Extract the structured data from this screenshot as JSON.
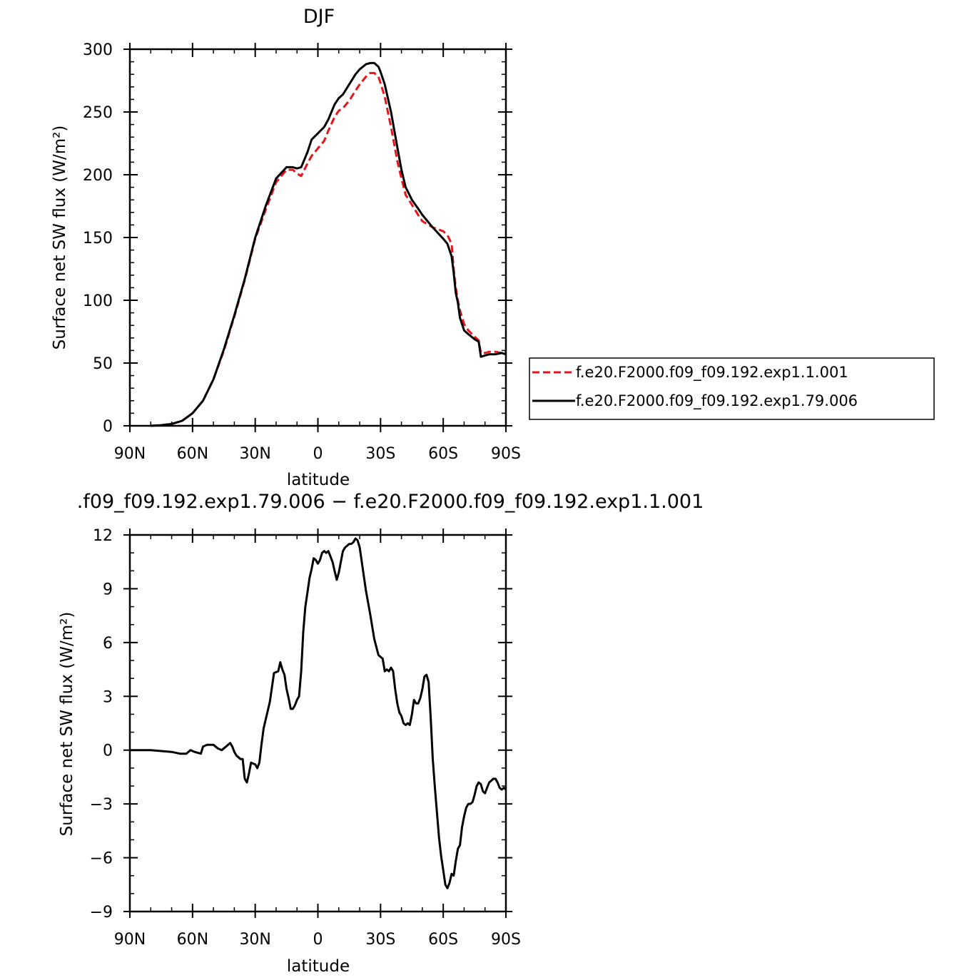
{
  "chart_data": [
    {
      "type": "line",
      "title": "DJF",
      "xlabel": "latitude",
      "ylabel": "Surface net SW flux (W/m²)",
      "xlim": [
        90,
        -90
      ],
      "ylim": [
        0,
        300
      ],
      "x_ticks": [
        {
          "value": 90,
          "label": "90N"
        },
        {
          "value": 60,
          "label": "60N"
        },
        {
          "value": 30,
          "label": "30N"
        },
        {
          "value": 0,
          "label": "0"
        },
        {
          "value": -30,
          "label": "30S"
        },
        {
          "value": -60,
          "label": "60S"
        },
        {
          "value": -90,
          "label": "90S"
        }
      ],
      "y_ticks": [
        {
          "value": 0,
          "label": "0"
        },
        {
          "value": 50,
          "label": "50"
        },
        {
          "value": 100,
          "label": "100"
        },
        {
          "value": 150,
          "label": "150"
        },
        {
          "value": 200,
          "label": "200"
        },
        {
          "value": 250,
          "label": "250"
        },
        {
          "value": 300,
          "label": "300"
        }
      ],
      "legend_position": "right",
      "series": [
        {
          "name": "f.e20.F2000.f09_f09.192.exp1.1.001",
          "color": "#e8141b",
          "dash": "dashed",
          "x": [
            80,
            75,
            70,
            65,
            60,
            55,
            50,
            45,
            40,
            35,
            30,
            25,
            20,
            15,
            12,
            10,
            8,
            5,
            3,
            0,
            -3,
            -5,
            -8,
            -10,
            -12,
            -15,
            -18,
            -20,
            -23,
            -25,
            -27,
            -29,
            -30,
            -32,
            -35,
            -38,
            -40,
            -42,
            -45,
            -48,
            -50,
            -55,
            -60,
            -62,
            -64,
            -65,
            -66,
            -67,
            -68,
            -70,
            -72,
            -75,
            -77,
            -78,
            -80,
            -82,
            -85,
            -88,
            -90
          ],
          "y": [
            0,
            0.5,
            1.5,
            4,
            10,
            20,
            37,
            60,
            87,
            116,
            149,
            172,
            194,
            204,
            204,
            201,
            199,
            209,
            215,
            221,
            227,
            235,
            246,
            251,
            253,
            259,
            267,
            272,
            278,
            281,
            281,
            278,
            273,
            262,
            238,
            211,
            197,
            184,
            176,
            168,
            163,
            158,
            155,
            152,
            145,
            125,
            110,
            100,
            92,
            81,
            76,
            71,
            68,
            58,
            58,
            59,
            59,
            58,
            59
          ]
        },
        {
          "name": "f.e20.F2000.f09_f09.192.exp1.79.006",
          "color": "#000000",
          "dash": "solid",
          "x": [
            80,
            75,
            70,
            65,
            60,
            55,
            50,
            45,
            40,
            35,
            30,
            25,
            20,
            15,
            12,
            10,
            8,
            5,
            3,
            0,
            -3,
            -5,
            -8,
            -10,
            -12,
            -15,
            -18,
            -20,
            -23,
            -25,
            -27,
            -29,
            -30,
            -32,
            -35,
            -38,
            -40,
            -42,
            -45,
            -48,
            -50,
            -55,
            -60,
            -62,
            -64,
            -65,
            -66,
            -67,
            -68,
            -70,
            -72,
            -75,
            -77,
            -78,
            -80,
            -82,
            -85,
            -88,
            -90
          ],
          "y": [
            0,
            0.5,
            1.5,
            4,
            10,
            20,
            37,
            61,
            88,
            117,
            150,
            175,
            197,
            206,
            206,
            205,
            206,
            218,
            228,
            233,
            238,
            244,
            256,
            261,
            264,
            272,
            280,
            284,
            288,
            289,
            289,
            286,
            282,
            272,
            250,
            222,
            204,
            190,
            180,
            173,
            168,
            158,
            149,
            145,
            135,
            122,
            106,
            98,
            86,
            76,
            73,
            69,
            67,
            55,
            56,
            57,
            57,
            58,
            57
          ]
        }
      ]
    },
    {
      "type": "line",
      "title": ".f09_f09.192.exp1.79.006 − f.e20.F2000.f09_f09.192.exp1.1.001",
      "xlabel": "latitude",
      "ylabel": "Surface net SW flux (W/m²)",
      "xlim": [
        90,
        -90
      ],
      "ylim": [
        -9,
        12
      ],
      "x_ticks": [
        {
          "value": 90,
          "label": "90N"
        },
        {
          "value": 60,
          "label": "60N"
        },
        {
          "value": 30,
          "label": "30N"
        },
        {
          "value": 0,
          "label": "0"
        },
        {
          "value": -30,
          "label": "30S"
        },
        {
          "value": -60,
          "label": "60S"
        },
        {
          "value": -90,
          "label": "90S"
        }
      ],
      "y_ticks": [
        {
          "value": -9,
          "label": "−9"
        },
        {
          "value": -6,
          "label": "−6"
        },
        {
          "value": -3,
          "label": "−3"
        },
        {
          "value": 0,
          "label": "0"
        },
        {
          "value": 3,
          "label": "3"
        },
        {
          "value": 6,
          "label": "6"
        },
        {
          "value": 9,
          "label": "9"
        },
        {
          "value": 12,
          "label": "12"
        }
      ],
      "series": [
        {
          "color": "#000000",
          "dash": "solid",
          "x": [
            90,
            80,
            70,
            66,
            63,
            61,
            59,
            56,
            55,
            53,
            51,
            50,
            48,
            46,
            45,
            43,
            42,
            41,
            40,
            39,
            37,
            36,
            35,
            34,
            33,
            32,
            30,
            29,
            28,
            27,
            26,
            25,
            23,
            21,
            19,
            18,
            17,
            16,
            15,
            14,
            13,
            12,
            11,
            10,
            9,
            8,
            7,
            6,
            5,
            4,
            3,
            2,
            1,
            0,
            -1,
            -2,
            -3,
            -4,
            -5,
            -6,
            -7,
            -8,
            -9,
            -10,
            -11,
            -12,
            -13,
            -14,
            -15,
            -16,
            -17,
            -18,
            -19,
            -20,
            -21,
            -22,
            -23,
            -25,
            -27,
            -29,
            -31,
            -32,
            -33,
            -34,
            -35,
            -36,
            -37,
            -38,
            -39,
            -40,
            -41,
            -42,
            -43,
            -44,
            -45,
            -46,
            -47,
            -48,
            -49,
            -50,
            -51,
            -52,
            -53,
            -54,
            -55,
            -56,
            -57,
            -58,
            -59,
            -60,
            -61,
            -62,
            -63,
            -64,
            -65,
            -66,
            -67,
            -68,
            -69,
            -70,
            -71,
            -72,
            -73,
            -74,
            -75,
            -76,
            -77,
            -78,
            -79,
            -80,
            -81,
            -82,
            -83,
            -84,
            -85,
            -86,
            -87,
            -88,
            -89,
            -90
          ],
          "y": [
            0,
            0,
            -0.1,
            -0.2,
            -0.2,
            0,
            -0.1,
            -0.2,
            0.2,
            0.3,
            0.3,
            0.3,
            0.1,
            0,
            0.1,
            0.3,
            0.4,
            0.2,
            -0.1,
            -0.3,
            -0.5,
            -0.5,
            -1.6,
            -1.8,
            -1.3,
            -0.7,
            -0.8,
            -1,
            -0.7,
            0.3,
            1.2,
            1.7,
            2.7,
            4.3,
            4.4,
            4.9,
            4.5,
            4.2,
            3.4,
            2.9,
            2.3,
            2.3,
            2.5,
            2.8,
            3.0,
            4.4,
            6.6,
            8.0,
            8.8,
            9.6,
            10.1,
            10.7,
            10.6,
            10.4,
            10.6,
            11.0,
            11.1,
            11.0,
            11.1,
            10.8,
            10.5,
            10.0,
            9.5,
            9.9,
            10.5,
            11.1,
            11.3,
            11.4,
            11.5,
            11.5,
            11.6,
            11.8,
            11.7,
            11.3,
            10.5,
            9.7,
            8.9,
            7.6,
            6.2,
            5.3,
            5.1,
            4.4,
            4.5,
            4.4,
            4.6,
            4.4,
            3.4,
            2.6,
            2.1,
            1.9,
            1.5,
            1.4,
            1.5,
            1.4,
            2.0,
            2.8,
            2.6,
            2.6,
            2.9,
            3.4,
            4.1,
            4.2,
            3.8,
            1.8,
            -0.5,
            -2.1,
            -3.5,
            -4.9,
            -5.9,
            -6.7,
            -7.5,
            -7.7,
            -7.4,
            -6.9,
            -7.0,
            -6.2,
            -5.5,
            -5.3,
            -4.3,
            -3.7,
            -3.2,
            -3.0,
            -3.0,
            -2.9,
            -2.5,
            -2.0,
            -1.8,
            -1.9,
            -2.3,
            -2.4,
            -2.1,
            -1.8,
            -1.7,
            -1.6,
            -1.6,
            -1.8,
            -2.1,
            -2.2,
            -2.1,
            -2.2
          ]
        }
      ]
    }
  ]
}
